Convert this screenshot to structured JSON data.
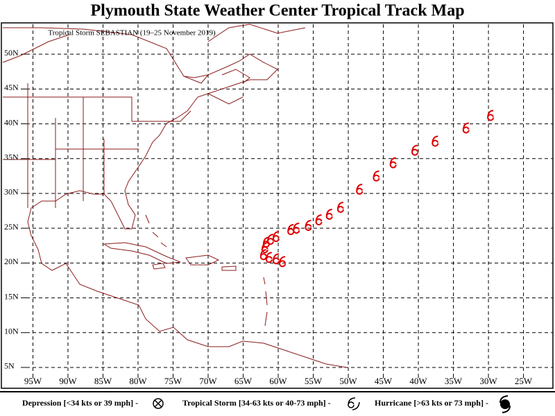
{
  "map": {
    "title": "Plymouth State Weather Center Tropical Track Map",
    "subtitle": "Tropical Storm SEBASTIAN (19–25 November 2019)",
    "xlim": [
      -99.5,
      -20.8
    ],
    "ylim": [
      4.0,
      54.3
    ],
    "xticks": [
      {
        "value": -95,
        "label": "95W"
      },
      {
        "value": -90,
        "label": "90W"
      },
      {
        "value": -85,
        "label": "85W"
      },
      {
        "value": -80,
        "label": "80W"
      },
      {
        "value": -75,
        "label": "75W"
      },
      {
        "value": -70,
        "label": "70W"
      },
      {
        "value": -65,
        "label": "65W"
      },
      {
        "value": -60,
        "label": "60W"
      },
      {
        "value": -55,
        "label": "55W"
      },
      {
        "value": -50,
        "label": "50W"
      },
      {
        "value": -45,
        "label": "45W"
      },
      {
        "value": -40,
        "label": "40W"
      },
      {
        "value": -35,
        "label": "35W"
      },
      {
        "value": -30,
        "label": "30W"
      },
      {
        "value": -25,
        "label": "25W"
      }
    ],
    "yticks": [
      {
        "value": 5,
        "label": "5N"
      },
      {
        "value": 10,
        "label": "10N"
      },
      {
        "value": 15,
        "label": "15N"
      },
      {
        "value": 20,
        "label": "20N"
      },
      {
        "value": 25,
        "label": "25N"
      },
      {
        "value": 30,
        "label": "30N"
      },
      {
        "value": 35,
        "label": "35N"
      },
      {
        "value": 40,
        "label": "40N"
      },
      {
        "value": 45,
        "label": "45N"
      },
      {
        "value": 50,
        "label": "50N"
      }
    ],
    "track": {
      "lon": [
        -59.4,
        -60.3,
        -61.3,
        -62.1,
        -61.9,
        -61.7,
        -61.1,
        -60.3,
        -58.2,
        -57.4,
        -55.7,
        -54.2,
        -52.7,
        -51.1,
        -48.4,
        -46.0,
        -43.6,
        -40.5,
        -37.6,
        -33.2,
        -29.7
      ],
      "lat": [
        20.1,
        20.5,
        20.7,
        21.1,
        22.1,
        22.9,
        23.3,
        23.7,
        24.7,
        24.9,
        25.3,
        26.1,
        26.9,
        27.9,
        30.5,
        32.4,
        34.3,
        36.1,
        37.4,
        39.3,
        41.1
      ]
    },
    "legend": {
      "depression": "Depression [<34 kts or 39 mph] -",
      "storm": "Tropical Storm [34-63 kts or 40-73 mph] -",
      "hurricane": "Hurricane [>63 kts or 73 mph] -"
    }
  }
}
